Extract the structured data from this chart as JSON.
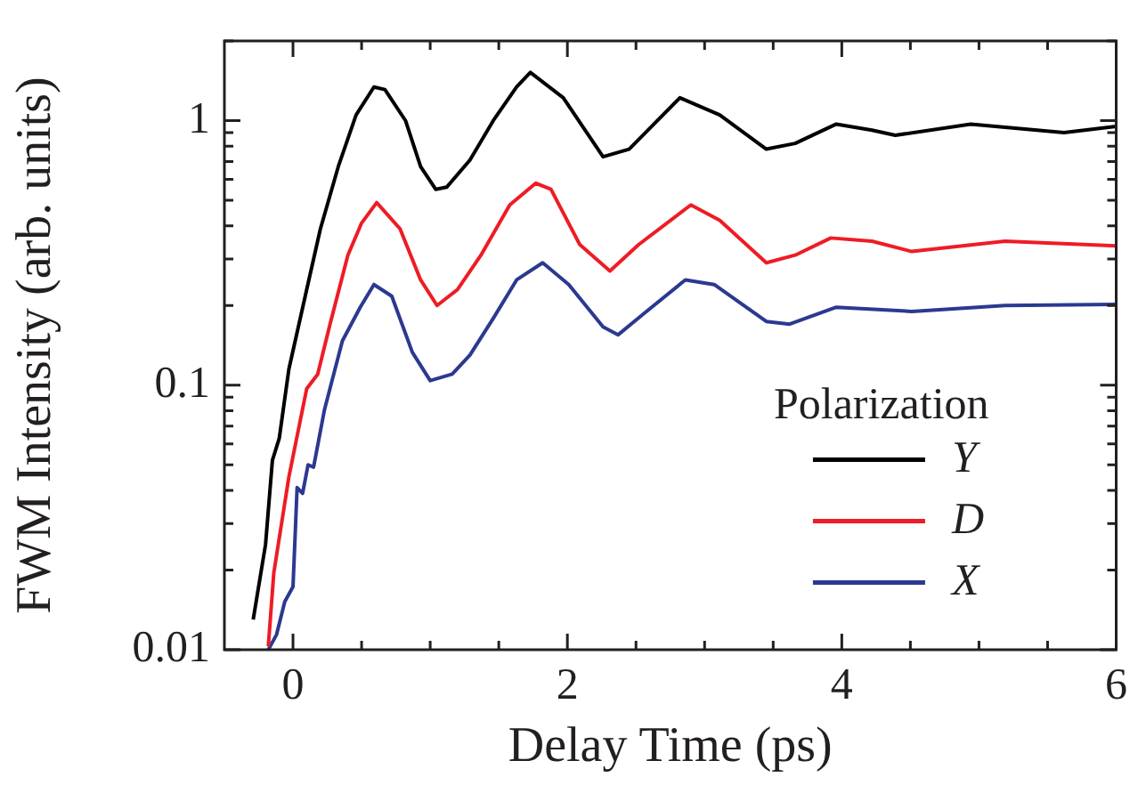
{
  "chart_data": {
    "type": "line",
    "xlabel": "Delay Time (ps)",
    "ylabel": "FWM Intensity (arb. units)",
    "legend_title": "Polarization",
    "legend": "bottom right",
    "log": "y",
    "marker": "none",
    "xlim": [
      -0.5,
      6
    ],
    "ylim": [
      0.01,
      2
    ],
    "xticks": [
      0,
      {
        "value": 0.5,
        "label": null
      },
      {
        "value": 1,
        "label": null
      },
      {
        "value": 1.5,
        "label": null
      },
      2,
      {
        "value": 2.5,
        "label": null
      },
      {
        "value": 3,
        "label": null
      },
      {
        "value": 3.5,
        "label": null
      },
      4,
      {
        "value": 4.5,
        "label": null
      },
      {
        "value": 5,
        "label": null
      },
      {
        "value": 5.5,
        "label": null
      },
      6
    ],
    "yticks": [
      0.01,
      {
        "value": 0.02,
        "label": null
      },
      {
        "value": 0.03,
        "label": null
      },
      {
        "value": 0.04,
        "label": null
      },
      {
        "value": 0.05,
        "label": null
      },
      {
        "value": 0.06,
        "label": null
      },
      {
        "value": 0.07,
        "label": null
      },
      {
        "value": 0.08,
        "label": null
      },
      {
        "value": 0.09,
        "label": null
      },
      0.1,
      {
        "value": 0.2,
        "label": null
      },
      {
        "value": 0.3,
        "label": null
      },
      {
        "value": 0.4,
        "label": null
      },
      {
        "value": 0.5,
        "label": null
      },
      {
        "value": 0.6,
        "label": null
      },
      {
        "value": 0.7,
        "label": null
      },
      {
        "value": 0.8,
        "label": null
      },
      {
        "value": 0.9,
        "label": null
      },
      1,
      {
        "value": 2,
        "label": null
      }
    ],
    "series": [
      {
        "name": "Y",
        "color": "#000000",
        "x": [
          -0.29,
          -0.2,
          -0.15,
          -0.1,
          -0.03,
          0.1,
          0.2,
          0.33,
          0.46,
          0.59,
          0.67,
          0.82,
          0.93,
          1.04,
          1.12,
          1.29,
          1.46,
          1.63,
          1.73,
          1.97,
          2.26,
          2.45,
          2.82,
          3.11,
          3.45,
          3.66,
          3.96,
          4.22,
          4.39,
          4.94,
          5.62,
          6.0
        ],
        "values": [
          0.013,
          0.025,
          0.052,
          0.063,
          0.115,
          0.23,
          0.39,
          0.67,
          1.05,
          1.34,
          1.31,
          1.0,
          0.67,
          0.55,
          0.56,
          0.71,
          1.0,
          1.34,
          1.52,
          1.22,
          0.73,
          0.78,
          1.22,
          1.05,
          0.78,
          0.82,
          0.97,
          0.92,
          0.88,
          0.97,
          0.9,
          0.95
        ]
      },
      {
        "name": "D",
        "color": "#ee1c25",
        "x": [
          -0.18,
          -0.14,
          -0.03,
          0.1,
          0.18,
          0.27,
          0.4,
          0.5,
          0.61,
          0.78,
          0.93,
          1.05,
          1.2,
          1.37,
          1.58,
          1.77,
          1.88,
          2.09,
          2.31,
          2.52,
          2.9,
          3.11,
          3.45,
          3.66,
          3.92,
          4.22,
          4.51,
          5.19,
          6.0
        ],
        "values": [
          0.0103,
          0.0195,
          0.045,
          0.097,
          0.11,
          0.17,
          0.31,
          0.41,
          0.49,
          0.39,
          0.25,
          0.2,
          0.23,
          0.31,
          0.48,
          0.58,
          0.55,
          0.34,
          0.27,
          0.34,
          0.48,
          0.42,
          0.29,
          0.31,
          0.36,
          0.35,
          0.32,
          0.35,
          0.336
        ]
      },
      {
        "name": "X",
        "color": "#2b3990",
        "x": [
          -0.18,
          -0.12,
          -0.06,
          0.0,
          0.03,
          0.07,
          0.11,
          0.15,
          0.23,
          0.36,
          0.49,
          0.59,
          0.72,
          0.87,
          1.0,
          1.16,
          1.29,
          1.46,
          1.63,
          1.82,
          2.01,
          2.26,
          2.37,
          2.56,
          2.86,
          3.07,
          3.45,
          3.62,
          3.96,
          4.51,
          5.19,
          6.0
        ],
        "values": [
          0.01,
          0.0114,
          0.0152,
          0.0173,
          0.041,
          0.039,
          0.05,
          0.049,
          0.081,
          0.147,
          0.197,
          0.24,
          0.217,
          0.133,
          0.104,
          0.11,
          0.13,
          0.179,
          0.25,
          0.29,
          0.24,
          0.166,
          0.155,
          0.187,
          0.25,
          0.24,
          0.174,
          0.17,
          0.197,
          0.19,
          0.2,
          0.202
        ]
      }
    ]
  }
}
